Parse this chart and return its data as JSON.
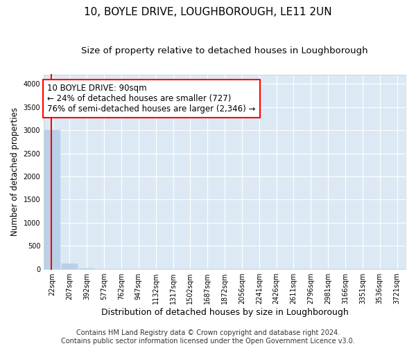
{
  "title1": "10, BOYLE DRIVE, LOUGHBOROUGH, LE11 2UN",
  "title2": "Size of property relative to detached houses in Loughborough",
  "xlabel": "Distribution of detached houses by size in Loughborough",
  "ylabel": "Number of detached properties",
  "bar_labels": [
    "22sqm",
    "207sqm",
    "392sqm",
    "577sqm",
    "762sqm",
    "947sqm",
    "1132sqm",
    "1317sqm",
    "1502sqm",
    "1687sqm",
    "1872sqm",
    "2056sqm",
    "2241sqm",
    "2426sqm",
    "2611sqm",
    "2796sqm",
    "2981sqm",
    "3166sqm",
    "3351sqm",
    "3536sqm",
    "3721sqm"
  ],
  "bar_values": [
    3000,
    120,
    2,
    1,
    1,
    0,
    0,
    0,
    0,
    0,
    0,
    0,
    0,
    0,
    0,
    0,
    0,
    0,
    0,
    0,
    0
  ],
  "bar_color": "#b8d0e8",
  "ylim": [
    0,
    4200
  ],
  "yticks": [
    0,
    500,
    1000,
    1500,
    2000,
    2500,
    3000,
    3500,
    4000
  ],
  "ann_title": "10 BOYLE DRIVE: 90sqm",
  "ann_line2": "← 24% of detached houses are smaller (727)",
  "ann_line3": "76% of semi-detached houses are larger (2,346) →",
  "footer1": "Contains HM Land Registry data © Crown copyright and database right 2024.",
  "footer2": "Contains public sector information licensed under the Open Government Licence v3.0.",
  "fig_bg_color": "#ffffff",
  "plot_bg_color": "#dce9f5",
  "grid_color": "#ffffff",
  "title1_fontsize": 11,
  "title2_fontsize": 9.5,
  "xlabel_fontsize": 9,
  "ylabel_fontsize": 8.5,
  "tick_fontsize": 7,
  "footer_fontsize": 7,
  "ann_fontsize": 8.5,
  "red_line_x": -0.08
}
